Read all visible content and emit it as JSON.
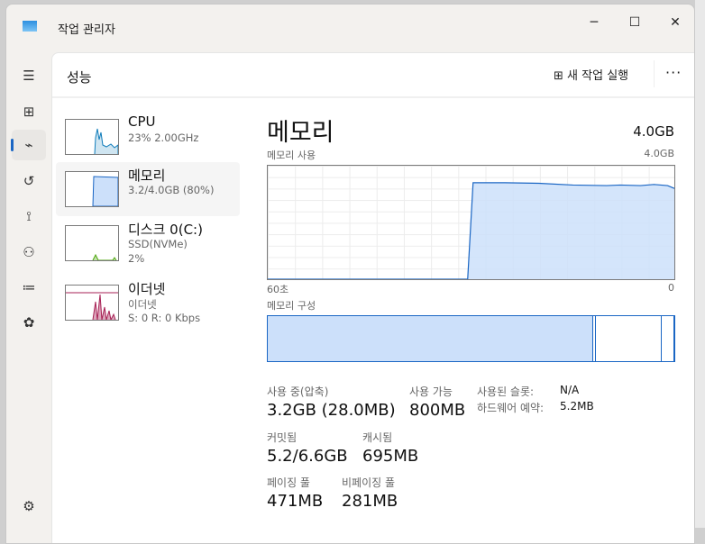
{
  "window": {
    "title": "작업 관리자",
    "controls": {
      "minimize": "─",
      "maximize": "☐",
      "close": "✕"
    }
  },
  "nav": [
    {
      "icon": "hamburger-icon",
      "glyph": "☰"
    },
    {
      "icon": "processes-icon",
      "glyph": "⊞"
    },
    {
      "icon": "performance-icon",
      "glyph": "⌁",
      "active": true
    },
    {
      "icon": "app-history-icon",
      "glyph": "↺"
    },
    {
      "icon": "startup-icon",
      "glyph": "⟟"
    },
    {
      "icon": "users-icon",
      "glyph": "⚇"
    },
    {
      "icon": "details-icon",
      "glyph": "≔"
    },
    {
      "icon": "services-icon",
      "glyph": "✿"
    },
    {
      "icon": "settings-icon",
      "glyph": "⚙"
    }
  ],
  "header": {
    "title": "성능",
    "new_task": "새 작업 실행",
    "more": "···"
  },
  "devices": [
    {
      "name": "CPU",
      "sub1": "23% 2.00GHz",
      "color": "#117dbb"
    },
    {
      "name": "메모리",
      "sub1": "3.2/4.0GB (80%)",
      "color": "#1a66c4",
      "selected": true
    },
    {
      "name": "디스크 0(C:)",
      "sub1": "SSD(NVMe)",
      "sub2": "2%",
      "color": "#4da60c"
    },
    {
      "name": "이더넷",
      "sub1": "이더넷",
      "sub2": "S: 0 R: 0 Kbps",
      "color": "#a72054"
    }
  ],
  "main": {
    "title": "메모리",
    "total": "4.0GB",
    "usage_label": "메모리 사용",
    "usage_max": "4.0GB",
    "time_left": "60초",
    "time_right": "0",
    "composition_label": "메모리 구성",
    "stats": {
      "in_use_label": "사용 중(압축)",
      "in_use": "3.2GB (28.0MB)",
      "available_label": "사용 가능",
      "available": "800MB",
      "committed_label": "커밋됨",
      "committed": "5.2/6.6GB",
      "cached_label": "캐시됨",
      "cached": "695MB",
      "paged_label": "페이징 풀",
      "paged": "471MB",
      "nonpaged_label": "비페이징 풀",
      "nonpaged": "281MB",
      "slots_label": "사용된 슬롯:",
      "slots": "N/A",
      "hw_label": "하드웨어 예약:",
      "hw": "5.2MB"
    }
  },
  "chart_data": {
    "type": "area",
    "title": "메모리 사용",
    "xlabel": "",
    "ylabel": "",
    "x_unit": "seconds ago",
    "xlim": [
      60,
      0
    ],
    "ylim": [
      0,
      4.0
    ],
    "color": "#1a66c4",
    "x": [
      60,
      30.5,
      29.7,
      25,
      20,
      15,
      10,
      8,
      5,
      3,
      1,
      0
    ],
    "values": [
      0,
      0,
      3.4,
      3.4,
      3.38,
      3.32,
      3.3,
      3.32,
      3.3,
      3.34,
      3.3,
      3.2
    ]
  },
  "composition": {
    "in_use_pct": 80,
    "modified_pct": 0.7,
    "standby_pct": 16.3,
    "free_pct": 3
  }
}
